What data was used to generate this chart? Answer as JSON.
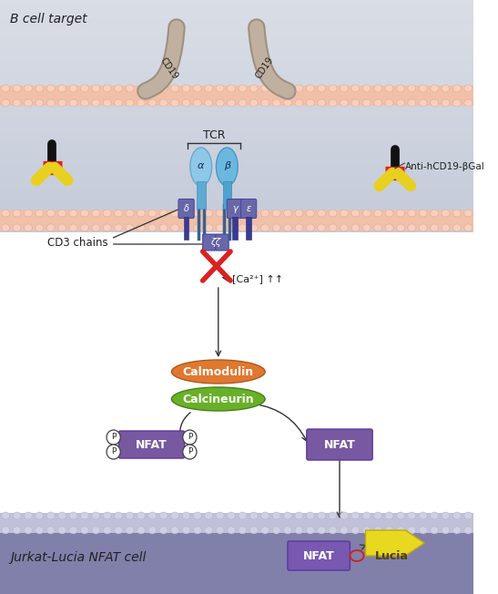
{
  "label_b_cell": "B cell target",
  "label_jurkat": "Jurkat-Lucia NFAT cell",
  "label_tcr": "TCR",
  "label_alpha": "α",
  "label_beta": "β",
  "label_delta": "δ",
  "label_gamma": "γ",
  "label_epsilon": "ε",
  "label_zeta": "ζζ",
  "label_cd3": "CD3 chains",
  "label_ca": "[Ca²⁺] ↑↑",
  "label_calmodulin": "Calmodulin",
  "label_calcineurin": "Calcineurin",
  "label_nfat": "NFAT",
  "label_lucia": "Lucia",
  "label_anti": "Anti-hCD19-βGal",
  "label_cd19": "CD19",
  "label_p": "P",
  "figsize": [
    5.47,
    6.52
  ],
  "dpi": 100
}
